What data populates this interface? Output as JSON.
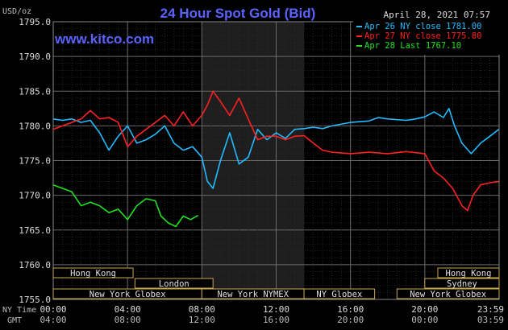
{
  "chart_data": {
    "type": "line",
    "title": "24 Hour Spot Gold (Bid)",
    "ylabel": "USD/oz",
    "date_label": "April 28, 2021 07:57",
    "brand": "www.kitco.com",
    "ylim": [
      1755,
      1795
    ],
    "yticks": [
      "1795.0",
      "1790.0",
      "1785.0",
      "1780.0",
      "1775.0",
      "1770.0",
      "1765.0",
      "1760.0",
      "1755.0"
    ],
    "xlim": [
      0,
      24
    ],
    "xlabel_ny": "NY Time",
    "xlabel_gmt": "GMT",
    "xticks_ny": [
      "00:00",
      "04:00",
      "08:00",
      "12:00",
      "16:00",
      "20:00",
      "23:59"
    ],
    "xticks_gmt": [
      "04:00",
      "08:00",
      "12:00",
      "16:00",
      "20:00",
      "00:00",
      "03:59"
    ],
    "xtick_hours": [
      0,
      4,
      8,
      12,
      16,
      20,
      23.983
    ],
    "shaded_hours": [
      8,
      13.5
    ],
    "grid": true,
    "legend_position": "top-right",
    "colors": {
      "apr26": "#22bbff",
      "apr27": "#ff2020",
      "apr28": "#20e020",
      "title": "#5b63ff",
      "label": "#bbbbbb"
    },
    "series": [
      {
        "name": "Apr 26 NY close 1781.00",
        "color": "#22bbff",
        "x": [
          0,
          0.5,
          1,
          1.5,
          2,
          2.5,
          3,
          3.5,
          4,
          4.5,
          5,
          5.5,
          6,
          6.5,
          7,
          7.5,
          8,
          8.3,
          8.6,
          9,
          9.5,
          10,
          10.5,
          11,
          11.5,
          12,
          12.5,
          13,
          13.5,
          14,
          14.5,
          15,
          16,
          17,
          17.5,
          18,
          19,
          19.5,
          20,
          20.5,
          21,
          21.3,
          21.6,
          22,
          22.5,
          23,
          23.5,
          23.98
        ],
        "y": [
          1781.0,
          1780.8,
          1781.0,
          1780.5,
          1780.8,
          1779.0,
          1776.5,
          1778.5,
          1780.0,
          1777.5,
          1778.0,
          1778.8,
          1780.0,
          1777.5,
          1776.5,
          1777.0,
          1775.5,
          1772.0,
          1771.0,
          1775.0,
          1779.0,
          1774.5,
          1775.5,
          1779.5,
          1778.0,
          1779.0,
          1778.2,
          1779.5,
          1779.6,
          1779.8,
          1779.6,
          1780.0,
          1780.5,
          1780.7,
          1781.2,
          1781.0,
          1780.8,
          1781.0,
          1781.3,
          1782.0,
          1781.2,
          1782.5,
          1780.0,
          1777.5,
          1776.0,
          1777.5,
          1778.5,
          1779.5
        ]
      },
      {
        "name": "Apr 27 NY close 1775.80",
        "color": "#ff2020",
        "x": [
          0,
          0.5,
          1,
          1.5,
          2,
          2.5,
          3,
          3.5,
          4,
          4.5,
          5,
          5.5,
          6,
          6.5,
          7,
          7.5,
          8,
          8.3,
          8.6,
          9,
          9.5,
          10,
          10.5,
          11,
          11.5,
          12,
          12.5,
          13,
          13.5,
          14,
          14.5,
          15,
          16,
          17,
          18,
          19,
          20,
          20.5,
          21,
          21.5,
          22,
          22.3,
          22.6,
          23,
          23.5,
          23.98
        ],
        "y": [
          1779.5,
          1780.0,
          1780.5,
          1781.0,
          1782.2,
          1781.0,
          1781.2,
          1780.5,
          1777.0,
          1778.5,
          1779.5,
          1780.5,
          1781.5,
          1780.0,
          1782.0,
          1780.0,
          1781.5,
          1783.0,
          1785.0,
          1783.5,
          1781.5,
          1784.0,
          1781.0,
          1778.0,
          1778.5,
          1778.5,
          1778.0,
          1778.5,
          1778.6,
          1777.5,
          1776.5,
          1776.2,
          1776.0,
          1776.2,
          1776.0,
          1776.3,
          1776.0,
          1773.5,
          1772.5,
          1771.0,
          1768.5,
          1767.8,
          1770.0,
          1771.5,
          1771.8,
          1772.0
        ]
      },
      {
        "name": "Apr 28 Last 1767.10",
        "color": "#20e020",
        "x": [
          0,
          0.5,
          1,
          1.5,
          2,
          2.5,
          3,
          3.5,
          4,
          4.5,
          5,
          5.5,
          5.8,
          6.2,
          6.6,
          7,
          7.4,
          7.8
        ],
        "y": [
          1771.5,
          1771.0,
          1770.5,
          1768.5,
          1769.0,
          1768.5,
          1767.5,
          1768.0,
          1766.5,
          1768.5,
          1769.5,
          1769.2,
          1767.0,
          1766.0,
          1765.5,
          1767.0,
          1766.5,
          1767.1
        ]
      }
    ],
    "sessions": {
      "row1": [
        {
          "label": "Hong Kong",
          "start": 0.0,
          "end": 4.3
        },
        {
          "label": "Hong Kong",
          "start": 20.7,
          "end": 24.0
        }
      ],
      "row2": [
        {
          "label": "London",
          "start": 4.4,
          "end": 8.6
        },
        {
          "label": "Sydney",
          "start": 20.0,
          "end": 24.0
        }
      ],
      "row3": [
        {
          "label": "New York Globex",
          "start": 0.0,
          "end": 8.0
        },
        {
          "label": "New York NYMEX",
          "start": 8.0,
          "end": 13.5
        },
        {
          "label": "NY Globex",
          "start": 13.5,
          "end": 17.3
        },
        {
          "label": "New York Globex",
          "start": 18.5,
          "end": 24.0
        }
      ]
    }
  }
}
